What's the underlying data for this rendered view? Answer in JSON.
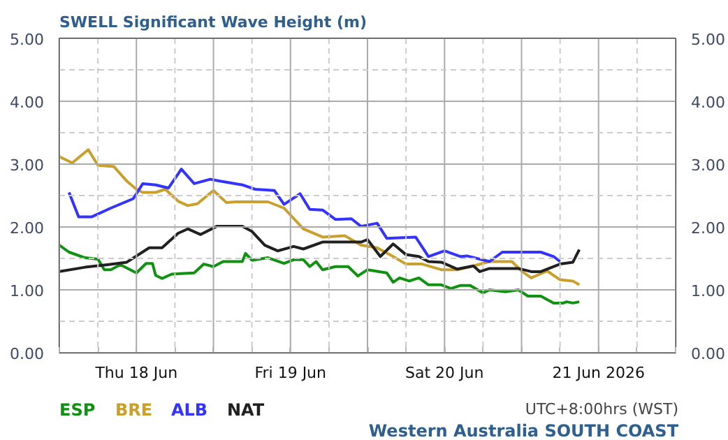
{
  "chart_data": {
    "type": "line",
    "title": "SWELL Significant Wave Height (m)",
    "xlim": [
      "2026-06-18T00:00",
      "2026-06-22T00:00"
    ],
    "xticks": [
      {
        "value": "2026-06-18T00:00",
        "label": null
      },
      {
        "value": "2026-06-18T06:00",
        "label": null
      },
      {
        "value": "2026-06-18T12:00",
        "label": "Thu 18 Jun"
      },
      {
        "value": "2026-06-18T18:00",
        "label": null
      },
      {
        "value": "2026-06-19T00:00",
        "label": null
      },
      {
        "value": "2026-06-19T06:00",
        "label": null
      },
      {
        "value": "2026-06-19T12:00",
        "label": "Fri 19 Jun"
      },
      {
        "value": "2026-06-19T18:00",
        "label": null
      },
      {
        "value": "2026-06-20T00:00",
        "label": null
      },
      {
        "value": "2026-06-20T06:00",
        "label": null
      },
      {
        "value": "2026-06-20T12:00",
        "label": "Sat 20 Jun"
      },
      {
        "value": "2026-06-20T18:00",
        "label": null
      },
      {
        "value": "2026-06-21T00:00",
        "label": null
      },
      {
        "value": "2026-06-21T06:00",
        "label": null
      },
      {
        "value": "2026-06-21T12:00",
        "label": "21 Jun 2026"
      },
      {
        "value": "2026-06-21T18:00",
        "label": null
      },
      {
        "value": "2026-06-22T00:00",
        "label": null
      }
    ],
    "ylim": [
      0,
      5
    ],
    "yticks": [
      {
        "value": 0,
        "label": "0.00"
      },
      {
        "value": 0.5,
        "label": null
      },
      {
        "value": 1,
        "label": "1.00"
      },
      {
        "value": 1.5,
        "label": null
      },
      {
        "value": 2,
        "label": "2.00"
      },
      {
        "value": 2.5,
        "label": null
      },
      {
        "value": 3,
        "label": "3.00"
      },
      {
        "value": 3.5,
        "label": null
      },
      {
        "value": 4,
        "label": "4.00"
      },
      {
        "value": 4.5,
        "label": null
      },
      {
        "value": 5,
        "label": "5.00"
      }
    ],
    "y2lim": [
      0,
      5
    ],
    "y2ticks": [
      {
        "value": 0,
        "label": "0.00"
      },
      {
        "value": 1,
        "label": "1.00"
      },
      {
        "value": 2,
        "label": "2.00"
      },
      {
        "value": 3,
        "label": "3.00"
      },
      {
        "value": 4,
        "label": "4.00"
      },
      {
        "value": 5,
        "label": "5.00"
      }
    ],
    "grid": true,
    "marker": "none",
    "line_style": "solid",
    "annotations": [
      "UTC+8:00hrs (WST)",
      "Western Australia SOUTH COAST"
    ],
    "series": [
      {
        "name": "ESP",
        "color": "#119111",
        "x": [
          "2026-06-18T00:00",
          "2026-06-18T01:30",
          "2026-06-18T04:00",
          "2026-06-18T06:00",
          "2026-06-18T07:00",
          "2026-06-18T08:00",
          "2026-06-18T09:30",
          "2026-06-18T12:00",
          "2026-06-18T13:30",
          "2026-06-18T14:30",
          "2026-06-18T15:00",
          "2026-06-18T16:00",
          "2026-06-18T17:30",
          "2026-06-18T21:00",
          "2026-06-18T22:30",
          "2026-06-19T00:00",
          "2026-06-19T01:30",
          "2026-06-19T04:30",
          "2026-06-19T05:00",
          "2026-06-19T06:00",
          "2026-06-19T08:30",
          "2026-06-19T11:00",
          "2026-06-19T12:30",
          "2026-06-19T14:00",
          "2026-06-19T15:00",
          "2026-06-19T16:00",
          "2026-06-19T17:00",
          "2026-06-19T19:00",
          "2026-06-19T21:00",
          "2026-06-19T22:30",
          "2026-06-20T00:00",
          "2026-06-20T03:00",
          "2026-06-20T04:00",
          "2026-06-20T05:00",
          "2026-06-20T06:30",
          "2026-06-20T08:00",
          "2026-06-20T09:30",
          "2026-06-20T11:30",
          "2026-06-20T13:00",
          "2026-06-20T14:30",
          "2026-06-20T16:00",
          "2026-06-20T18:00",
          "2026-06-20T19:00",
          "2026-06-20T21:30",
          "2026-06-20T23:30",
          "2026-06-21T01:00",
          "2026-06-21T03:00",
          "2026-06-21T05:00",
          "2026-06-21T06:30",
          "2026-06-21T07:00",
          "2026-06-21T08:00",
          "2026-06-21T09:00"
        ],
        "values": [
          1.71,
          1.6,
          1.51,
          1.49,
          1.32,
          1.32,
          1.4,
          1.27,
          1.42,
          1.42,
          1.23,
          1.18,
          1.25,
          1.27,
          1.41,
          1.37,
          1.45,
          1.45,
          1.58,
          1.47,
          1.51,
          1.42,
          1.48,
          1.48,
          1.37,
          1.45,
          1.32,
          1.37,
          1.37,
          1.22,
          1.32,
          1.27,
          1.12,
          1.19,
          1.14,
          1.19,
          1.08,
          1.08,
          1.02,
          1.07,
          1.07,
          0.95,
          1.0,
          0.97,
          1.0,
          0.9,
          0.9,
          0.79,
          0.79,
          0.81,
          0.79,
          0.81
        ]
      },
      {
        "name": "BRE",
        "color": "#c9a02c",
        "x": [
          "2026-06-18T00:00",
          "2026-06-18T02:00",
          "2026-06-18T04:30",
          "2026-06-18T06:00",
          "2026-06-18T08:30",
          "2026-06-18T10:30",
          "2026-06-18T12:00",
          "2026-06-18T13:00",
          "2026-06-18T15:00",
          "2026-06-18T16:30",
          "2026-06-18T18:30",
          "2026-06-18T20:00",
          "2026-06-18T21:30",
          "2026-06-19T00:00",
          "2026-06-19T02:00",
          "2026-06-19T03:30",
          "2026-06-19T08:30",
          "2026-06-19T11:00",
          "2026-06-19T14:00",
          "2026-06-19T17:00",
          "2026-06-19T20:30",
          "2026-06-19T23:00",
          "2026-06-20T01:30",
          "2026-06-20T04:00",
          "2026-06-20T06:00",
          "2026-06-20T08:30",
          "2026-06-20T11:30",
          "2026-06-20T14:00",
          "2026-06-20T16:30",
          "2026-06-20T19:00",
          "2026-06-20T22:30",
          "2026-06-21T00:00",
          "2026-06-21T01:30",
          "2026-06-21T04:00",
          "2026-06-21T06:00",
          "2026-06-21T08:00",
          "2026-06-21T09:00"
        ],
        "values": [
          3.12,
          3.02,
          3.23,
          2.98,
          2.96,
          2.73,
          2.6,
          2.55,
          2.55,
          2.6,
          2.41,
          2.34,
          2.37,
          2.58,
          2.39,
          2.4,
          2.4,
          2.3,
          1.97,
          1.84,
          1.86,
          1.71,
          1.67,
          1.53,
          1.41,
          1.41,
          1.32,
          1.32,
          1.38,
          1.45,
          1.45,
          1.3,
          1.19,
          1.3,
          1.16,
          1.14,
          1.08
        ]
      },
      {
        "name": "ALB",
        "color": "#3333ff",
        "x": [
          "2026-06-18T01:30",
          "2026-06-18T03:00",
          "2026-06-18T05:00",
          "2026-06-18T08:00",
          "2026-06-18T11:30",
          "2026-06-18T13:00",
          "2026-06-18T15:00",
          "2026-06-18T17:00",
          "2026-06-18T19:00",
          "2026-06-18T21:00",
          "2026-06-18T23:30",
          "2026-06-19T01:00",
          "2026-06-19T04:30",
          "2026-06-19T06:30",
          "2026-06-19T09:30",
          "2026-06-19T11:00",
          "2026-06-19T13:30",
          "2026-06-19T15:00",
          "2026-06-19T17:00",
          "2026-06-19T19:00",
          "2026-06-19T21:30",
          "2026-06-19T23:00",
          "2026-06-20T01:30",
          "2026-06-20T03:00",
          "2026-06-20T07:30",
          "2026-06-20T09:30",
          "2026-06-20T12:00",
          "2026-06-20T14:30",
          "2026-06-20T15:30",
          "2026-06-20T19:00",
          "2026-06-20T21:00",
          "2026-06-21T03:00",
          "2026-06-21T05:00",
          "2026-06-21T06:00"
        ],
        "values": [
          2.55,
          2.16,
          2.16,
          2.3,
          2.45,
          2.69,
          2.67,
          2.62,
          2.92,
          2.69,
          2.76,
          2.73,
          2.67,
          2.6,
          2.58,
          2.36,
          2.53,
          2.28,
          2.27,
          2.12,
          2.13,
          2.01,
          2.06,
          1.82,
          1.84,
          1.53,
          1.62,
          1.53,
          1.54,
          1.45,
          1.6,
          1.6,
          1.53,
          1.45
        ]
      },
      {
        "name": "NAT",
        "color": "#202020",
        "x": [
          "2026-06-18T00:00",
          "2026-06-18T04:00",
          "2026-06-18T07:30",
          "2026-06-18T10:30",
          "2026-06-18T14:00",
          "2026-06-18T16:00",
          "2026-06-18T18:30",
          "2026-06-18T20:00",
          "2026-06-18T22:00",
          "2026-06-19T00:30",
          "2026-06-19T04:30",
          "2026-06-19T06:00",
          "2026-06-19T08:00",
          "2026-06-19T10:00",
          "2026-06-19T12:30",
          "2026-06-19T14:00",
          "2026-06-19T17:00",
          "2026-06-19T19:30",
          "2026-06-19T23:00",
          "2026-06-20T00:00",
          "2026-06-20T02:00",
          "2026-06-20T04:00",
          "2026-06-20T06:00",
          "2026-06-20T08:00",
          "2026-06-20T09:30",
          "2026-06-20T11:30",
          "2026-06-20T14:00",
          "2026-06-20T16:30",
          "2026-06-20T17:30",
          "2026-06-20T19:00",
          "2026-06-20T23:30",
          "2026-06-21T01:30",
          "2026-06-21T03:00",
          "2026-06-21T06:00",
          "2026-06-21T08:00",
          "2026-06-21T09:00"
        ],
        "values": [
          1.29,
          1.36,
          1.4,
          1.44,
          1.67,
          1.67,
          1.9,
          1.97,
          1.88,
          2.01,
          2.01,
          1.93,
          1.71,
          1.62,
          1.69,
          1.65,
          1.76,
          1.76,
          1.76,
          1.8,
          1.53,
          1.73,
          1.56,
          1.53,
          1.45,
          1.44,
          1.33,
          1.38,
          1.29,
          1.34,
          1.34,
          1.29,
          1.29,
          1.41,
          1.44,
          1.64
        ]
      }
    ]
  }
}
